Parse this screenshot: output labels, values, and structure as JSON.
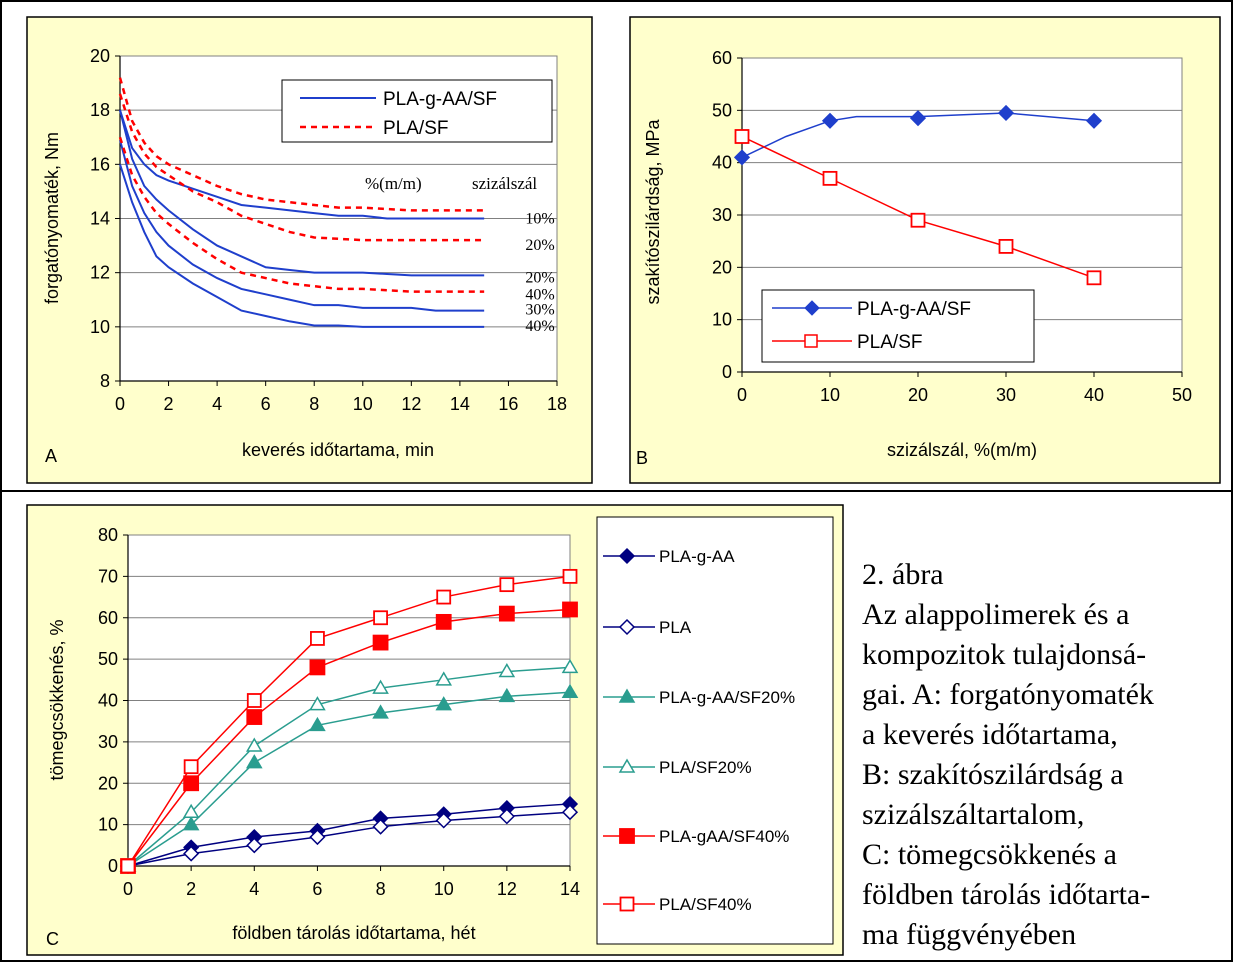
{
  "colors": {
    "panel_bg": "#FFFFCC",
    "plot_bg": "#FFFFFF",
    "blue": "#1F3FCC",
    "navy": "#000080",
    "red": "#FF0000",
    "teal": "#2A9D8F",
    "grid": "#808080"
  },
  "caption": {
    "lines": [
      "2. ábra",
      "Az alappolimerek és a",
      "kompozitok tulajdonsá-",
      "gai. A: forgatónyomaték",
      "a keverés időtartama,",
      "B: szakítószilárdság a",
      "szizálszáltartalom,",
      "C: tömegcsökkenés a",
      "földben tárolás időtarta-",
      "ma függvényében"
    ]
  },
  "chart_data": [
    {
      "panel": "A",
      "type": "line",
      "xlabel": "keverés időtartama, min",
      "ylabel": "forgatónyomaték, Nm",
      "xlim": [
        0,
        18
      ],
      "ylim": [
        8,
        20
      ],
      "xticks": [
        "0",
        "2",
        "4",
        "6",
        "8",
        "10",
        "12",
        "14",
        "16",
        "18"
      ],
      "yticks": [
        "8",
        "10",
        "12",
        "14",
        "16",
        "18",
        "20"
      ],
      "grid": "horizontal",
      "legend": {
        "position": "top-right",
        "entries": [
          "PLA-g-AA/SF",
          "PLA/SF"
        ]
      },
      "annotation_header": [
        "%(m/m)",
        "szizálszál"
      ],
      "series": [
        {
          "name": "PLA-g-AA/SF",
          "label": "10%",
          "style": "solid",
          "color": "#1F3FCC",
          "x": [
            0,
            0.5,
            1,
            1.5,
            2,
            3,
            4,
            5,
            6,
            7,
            8,
            9,
            10,
            11,
            12,
            13,
            14,
            15
          ],
          "y": [
            18,
            16.6,
            16,
            15.6,
            15.4,
            15.1,
            14.8,
            14.5,
            14.4,
            14.3,
            14.2,
            14.1,
            14.1,
            14.0,
            14.0,
            14.0,
            14.0,
            14.0
          ]
        },
        {
          "name": "PLA-g-AA/SF",
          "label": "20%",
          "style": "solid",
          "color": "#1F3FCC",
          "x": [
            0,
            0.5,
            1,
            1.5,
            2,
            3,
            4,
            5,
            6,
            7,
            8,
            9,
            10,
            11,
            12,
            13,
            14,
            15
          ],
          "y": [
            18,
            16.2,
            15.2,
            14.7,
            14.3,
            13.6,
            13.0,
            12.6,
            12.2,
            12.1,
            12.0,
            12.0,
            12.0,
            11.95,
            11.9,
            11.9,
            11.9,
            11.9
          ]
        },
        {
          "name": "PLA-g-AA/SF",
          "label": "30%",
          "style": "solid",
          "color": "#1F3FCC",
          "x": [
            0,
            0.5,
            1,
            1.5,
            2,
            3,
            4,
            5,
            6,
            7,
            8,
            9,
            10,
            11,
            12,
            13,
            14,
            15
          ],
          "y": [
            16.9,
            15.2,
            14.2,
            13.5,
            13.0,
            12.3,
            11.8,
            11.4,
            11.2,
            11.0,
            10.8,
            10.8,
            10.7,
            10.7,
            10.7,
            10.6,
            10.6,
            10.6
          ]
        },
        {
          "name": "PLA-g-AA/SF",
          "label": "40%",
          "style": "solid",
          "color": "#1F3FCC",
          "x": [
            0,
            0.5,
            1,
            1.5,
            2,
            3,
            4,
            5,
            6,
            7,
            8,
            9,
            10,
            11,
            12,
            13,
            14,
            15
          ],
          "y": [
            16,
            14.6,
            13.5,
            12.6,
            12.2,
            11.6,
            11.1,
            10.6,
            10.4,
            10.2,
            10.05,
            10.05,
            10.0,
            10.0,
            10.0,
            10.0,
            10.0,
            10.0
          ]
        },
        {
          "name": "PLA/SF",
          "label": "10%",
          "style": "dashed",
          "color": "#FF0000",
          "x": [
            0,
            0.5,
            1,
            1.5,
            2,
            3,
            4,
            5,
            6,
            7,
            8,
            9,
            10,
            11,
            12,
            13,
            14,
            15
          ],
          "y": [
            19.2,
            17.6,
            16.8,
            16.3,
            16.0,
            15.6,
            15.2,
            14.9,
            14.7,
            14.6,
            14.5,
            14.4,
            14.4,
            14.35,
            14.3,
            14.3,
            14.3,
            14.3
          ]
        },
        {
          "name": "PLA/SF",
          "label": "20%",
          "style": "dashed",
          "color": "#FF0000",
          "x": [
            0,
            0.5,
            1,
            1.5,
            2,
            3,
            4,
            5,
            6,
            7,
            8,
            9,
            10,
            11,
            12,
            13,
            14,
            15
          ],
          "y": [
            18.6,
            17.2,
            16.4,
            15.9,
            15.6,
            15.0,
            14.6,
            14.1,
            13.8,
            13.5,
            13.3,
            13.25,
            13.2,
            13.2,
            13.2,
            13.2,
            13.2,
            13.2
          ]
        },
        {
          "name": "PLA/SF",
          "label": "40%",
          "style": "dashed",
          "color": "#FF0000",
          "x": [
            0,
            0.5,
            1,
            1.5,
            2,
            3,
            4,
            5,
            6,
            7,
            8,
            9,
            10,
            11,
            12,
            13,
            14,
            15
          ],
          "y": [
            17.0,
            15.6,
            14.8,
            14.2,
            13.8,
            13.1,
            12.5,
            12.0,
            11.8,
            11.6,
            11.5,
            11.4,
            11.4,
            11.35,
            11.3,
            11.3,
            11.3,
            11.3
          ]
        }
      ]
    },
    {
      "panel": "B",
      "type": "line",
      "xlabel": "szizálszál, %(m/m)",
      "ylabel": "szakítószilárdság, MPa",
      "xlim": [
        0,
        50
      ],
      "ylim": [
        0,
        60
      ],
      "xticks": [
        "0",
        "10",
        "20",
        "30",
        "40",
        "50"
      ],
      "yticks": [
        "0",
        "10",
        "20",
        "30",
        "40",
        "50",
        "60"
      ],
      "grid": "horizontal",
      "legend": {
        "position": "bottom-left",
        "entries": [
          "PLA-g-AA/SF",
          "PLA/SF"
        ]
      },
      "series": [
        {
          "name": "PLA-g-AA/SF",
          "marker": "filled-diamond",
          "color": "#1F3FCC",
          "x": [
            0,
            10,
            20,
            30,
            40
          ],
          "y": [
            41,
            48,
            48.5,
            49.5,
            48
          ]
        },
        {
          "name": "PLA/SF",
          "marker": "open-square",
          "color": "#FF0000",
          "x": [
            0,
            10,
            20,
            30,
            40
          ],
          "y": [
            45,
            37,
            29,
            24,
            18
          ]
        }
      ]
    },
    {
      "panel": "C",
      "type": "line",
      "xlabel": "földben tárolás időtartama, hét",
      "ylabel": "tömegcsökkenés, %",
      "xlim": [
        0,
        14
      ],
      "ylim": [
        0,
        80
      ],
      "xticks": [
        "0",
        "2",
        "4",
        "6",
        "8",
        "10",
        "12",
        "14"
      ],
      "yticks": [
        "0",
        "10",
        "20",
        "30",
        "40",
        "50",
        "60",
        "70",
        "80"
      ],
      "grid": "horizontal",
      "legend": {
        "position": "right",
        "entries": [
          "PLA-g-AA",
          "PLA",
          "PLA-g-AA/SF20%",
          "PLA/SF20%",
          "PLA-gAA/SF40%",
          "PLA/SF40%"
        ]
      },
      "x": [
        0,
        2,
        4,
        6,
        8,
        10,
        12,
        14
      ],
      "series": [
        {
          "name": "PLA-g-AA",
          "marker": "filled-diamond",
          "color": "#000080",
          "values": [
            0,
            4.5,
            7,
            8.5,
            11.5,
            12.5,
            14,
            15
          ]
        },
        {
          "name": "PLA",
          "marker": "open-diamond",
          "color": "#000080",
          "values": [
            0,
            3,
            5,
            7,
            9.5,
            11,
            12,
            13
          ]
        },
        {
          "name": "PLA-g-AA/SF20%",
          "marker": "filled-triangle",
          "color": "#2A9D8F",
          "values": [
            0,
            10,
            25,
            34,
            37,
            39,
            41,
            42
          ]
        },
        {
          "name": "PLA/SF20%",
          "marker": "open-triangle",
          "color": "#2A9D8F",
          "values": [
            0,
            13,
            29,
            39,
            43,
            45,
            47,
            48
          ]
        },
        {
          "name": "PLA-gAA/SF40%",
          "marker": "filled-square",
          "color": "#FF0000",
          "values": [
            0,
            20,
            36,
            48,
            54,
            59,
            61,
            62
          ]
        },
        {
          "name": "PLA/SF40%",
          "marker": "open-square",
          "color": "#FF0000",
          "values": [
            0,
            24,
            40,
            55,
            60,
            65,
            68,
            70
          ]
        }
      ]
    }
  ]
}
